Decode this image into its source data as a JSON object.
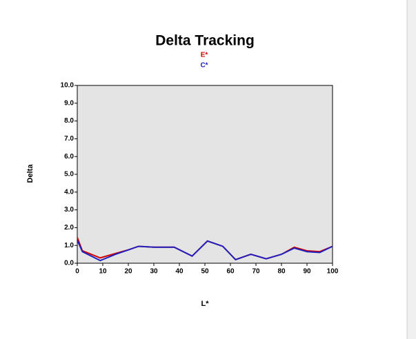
{
  "chart_data": {
    "type": "line",
    "title": "Delta Tracking",
    "x_label": "L*",
    "y_label": "Delta",
    "x": [
      0,
      2,
      9,
      15,
      20,
      24,
      30,
      38,
      45,
      51,
      57,
      62,
      68,
      74,
      80,
      85,
      90,
      95,
      100
    ],
    "series": [
      {
        "name": "E*",
        "color": "#d00000",
        "values": [
          1.45,
          0.7,
          0.3,
          0.55,
          0.75,
          0.95,
          0.9,
          0.9,
          0.4,
          1.25,
          0.95,
          0.2,
          0.5,
          0.25,
          0.5,
          0.9,
          0.7,
          0.65,
          0.95
        ]
      },
      {
        "name": "C*",
        "color": "#2020c0",
        "values": [
          1.3,
          0.65,
          0.15,
          0.5,
          0.75,
          0.95,
          0.9,
          0.9,
          0.4,
          1.25,
          0.95,
          0.2,
          0.5,
          0.25,
          0.5,
          0.85,
          0.65,
          0.6,
          0.95
        ]
      }
    ],
    "xlim": [
      0,
      100
    ],
    "ylim": [
      0,
      10
    ],
    "xticks": [
      0,
      10,
      20,
      30,
      40,
      50,
      60,
      70,
      80,
      90,
      100
    ],
    "yticks": [
      {
        "value": 0,
        "label": "0.0"
      },
      {
        "value": 1,
        "label": "1.0"
      },
      {
        "value": 2,
        "label": "2.0"
      },
      {
        "value": 3,
        "label": "3.0"
      },
      {
        "value": 4,
        "label": "4.0"
      },
      {
        "value": 5,
        "label": "5.0"
      },
      {
        "value": 6,
        "label": "6.0"
      },
      {
        "value": 7,
        "label": "7.0"
      },
      {
        "value": 8,
        "label": "8.0"
      },
      {
        "value": 9,
        "label": "9.0"
      },
      {
        "value": 10,
        "label": "10.0"
      }
    ],
    "grid": false
  }
}
